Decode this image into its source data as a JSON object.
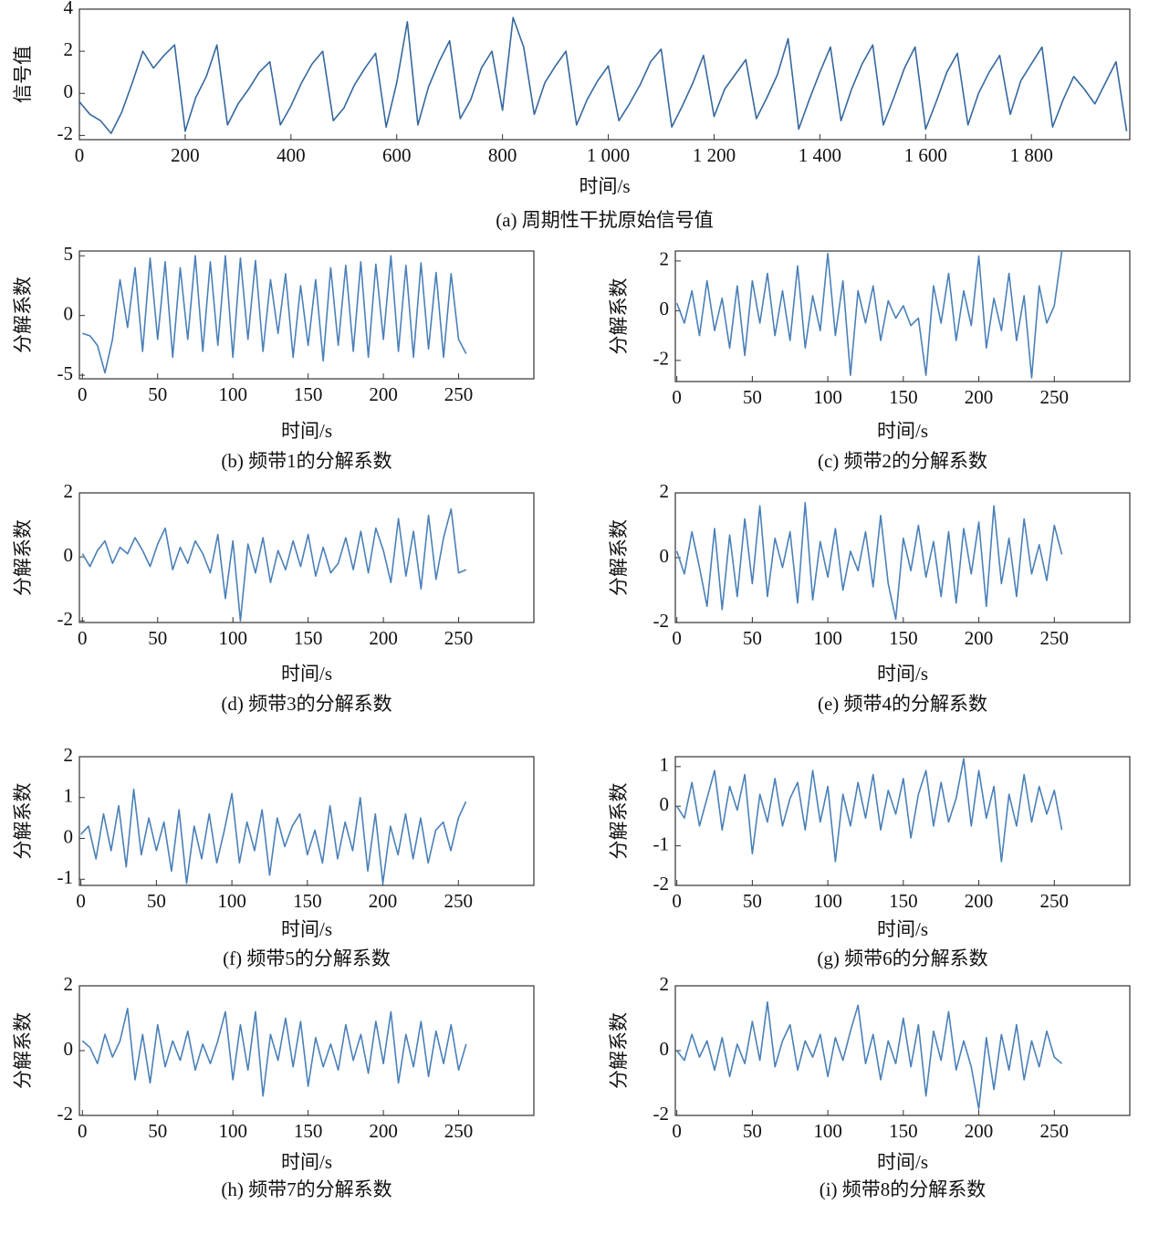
{
  "chart_data": [
    {
      "type": "line",
      "title": "(a) 周期性干扰原始信号值",
      "xlabel": "时间/s",
      "ylabel": "信号值",
      "color": "#35689f",
      "x": [
        0,
        20,
        40,
        60,
        80,
        100,
        120,
        140,
        160,
        180,
        200,
        220,
        240,
        260,
        280,
        300,
        320,
        340,
        360,
        380,
        400,
        420,
        440,
        460,
        480,
        500,
        520,
        540,
        560,
        580,
        600,
        620,
        640,
        660,
        680,
        700,
        720,
        740,
        760,
        780,
        800,
        820,
        840,
        860,
        880,
        900,
        920,
        940,
        960,
        980,
        1000,
        1020,
        1040,
        1060,
        1080,
        1100,
        1120,
        1140,
        1160,
        1180,
        1200,
        1220,
        1240,
        1260,
        1280,
        1300,
        1320,
        1340,
        1360,
        1380,
        1400,
        1420,
        1440,
        1460,
        1480,
        1500,
        1520,
        1540,
        1560,
        1580,
        1600,
        1620,
        1640,
        1660,
        1680,
        1700,
        1720,
        1740,
        1760,
        1780,
        1800,
        1820,
        1840,
        1860,
        1880,
        1900,
        1920,
        1940,
        1960,
        1980
      ],
      "values": [
        -0.4,
        -1.0,
        -1.3,
        -1.9,
        -0.9,
        0.5,
        2.0,
        1.2,
        1.8,
        2.3,
        -1.8,
        -0.2,
        0.8,
        2.3,
        -1.5,
        -0.5,
        0.2,
        1.0,
        1.5,
        -1.5,
        -0.6,
        0.5,
        1.4,
        2.0,
        -1.3,
        -0.7,
        0.4,
        1.2,
        1.9,
        -1.6,
        0.5,
        3.4,
        -1.5,
        0.3,
        1.5,
        2.5,
        -1.2,
        -0.3,
        1.2,
        2.0,
        -0.8,
        3.6,
        2.2,
        -1.0,
        0.5,
        1.3,
        2.0,
        -1.5,
        -0.3,
        0.6,
        1.3,
        -1.3,
        -0.5,
        0.4,
        1.5,
        2.1,
        -1.6,
        -0.6,
        0.5,
        1.8,
        -1.1,
        0.2,
        0.9,
        1.6,
        -1.2,
        -0.2,
        0.9,
        2.6,
        -1.7,
        -0.3,
        1.0,
        2.2,
        -1.3,
        0.2,
        1.4,
        2.3,
        -1.5,
        -0.2,
        1.2,
        2.2,
        -1.7,
        -0.4,
        1.0,
        1.9,
        -1.5,
        0.0,
        1.0,
        1.8,
        -1.0,
        0.6,
        1.4,
        2.2,
        -1.6,
        -0.3,
        0.8,
        0.2,
        -0.5,
        0.5,
        1.5,
        -1.8
      ],
      "xlim": [
        0,
        1986
      ],
      "ylim": [
        -2.2,
        4
      ],
      "xticks": [
        0,
        200,
        400,
        600,
        800,
        {
          "value": 1000,
          "label": "1 000"
        },
        {
          "value": 1200,
          "label": "1 200"
        },
        {
          "value": 1400,
          "label": "1 400"
        },
        {
          "value": 1600,
          "label": "1 600"
        },
        {
          "value": 1800,
          "label": "1 800"
        }
      ],
      "yticks": [
        -2,
        0,
        2,
        4
      ]
    },
    {
      "type": "line",
      "title": "(b) 频带1的分解系数",
      "xlabel": "时间/s",
      "ylabel": "分解系数",
      "color": "#4a80b8",
      "x": [
        0,
        5,
        10,
        15,
        20,
        25,
        30,
        35,
        40,
        45,
        50,
        55,
        60,
        65,
        70,
        75,
        80,
        85,
        90,
        95,
        100,
        105,
        110,
        115,
        120,
        125,
        130,
        135,
        140,
        145,
        150,
        155,
        160,
        165,
        170,
        175,
        180,
        185,
        190,
        195,
        200,
        205,
        210,
        215,
        220,
        225,
        230,
        235,
        240,
        245,
        250,
        255
      ],
      "values": [
        -1.5,
        -1.7,
        -2.5,
        -4.8,
        -2,
        3,
        -1,
        4,
        -3,
        4.8,
        -2,
        4.5,
        -3.5,
        4,
        -2,
        5,
        -3,
        4.5,
        -2.5,
        5,
        -3.5,
        4.8,
        -2,
        4.6,
        -3,
        3,
        -1.5,
        3.5,
        -3.5,
        2.5,
        -2.5,
        3,
        -3.8,
        4,
        -2.5,
        4.2,
        -3,
        4.5,
        -3.5,
        4.3,
        -2,
        5,
        -3,
        4.2,
        -3.5,
        4.4,
        -2.8,
        3.6,
        -3.5,
        3.5,
        -2,
        -3.2
      ],
      "xlim": [
        -2,
        300
      ],
      "ylim": [
        -5.3,
        5.4
      ],
      "xticks": [
        0,
        50,
        100,
        150,
        200,
        250
      ],
      "yticks": [
        -5,
        0,
        5
      ]
    },
    {
      "type": "line",
      "title": "(c) 频带2的分解系数",
      "xlabel": "时间/s",
      "ylabel": "分解系数",
      "color": "#4a80b8",
      "x": [
        0,
        5,
        10,
        15,
        20,
        25,
        30,
        35,
        40,
        45,
        50,
        55,
        60,
        65,
        70,
        75,
        80,
        85,
        90,
        95,
        100,
        105,
        110,
        115,
        120,
        125,
        130,
        135,
        140,
        145,
        150,
        155,
        160,
        165,
        170,
        175,
        180,
        185,
        190,
        195,
        200,
        205,
        210,
        215,
        220,
        225,
        230,
        235,
        240,
        245,
        250,
        255
      ],
      "values": [
        0.3,
        -0.5,
        0.8,
        -1,
        1.2,
        -0.8,
        0.5,
        -1.5,
        1,
        -1.8,
        1.2,
        -0.5,
        1.5,
        -1,
        0.8,
        -1.2,
        1.8,
        -1.5,
        0.6,
        -0.8,
        2.3,
        -1,
        1.2,
        -2.6,
        0.8,
        -0.5,
        1,
        -1.2,
        0.4,
        -0.3,
        0.2,
        -0.6,
        -0.3,
        -2.6,
        1,
        -0.5,
        1.5,
        -1.2,
        0.8,
        -0.6,
        2.2,
        -1.5,
        0.5,
        -0.8,
        1.5,
        -1.2,
        0.6,
        -2.7,
        1,
        -0.5,
        0.2,
        2.4
      ],
      "xlim": [
        -1,
        300
      ],
      "ylim": [
        -2.85,
        2.4
      ],
      "xticks": [
        0,
        50,
        100,
        150,
        200,
        250
      ],
      "yticks": [
        -2,
        0,
        2
      ]
    },
    {
      "type": "line",
      "title": "(d) 频带3的分解系数",
      "xlabel": "时间/s",
      "ylabel": "分解系数",
      "color": "#4a80b8",
      "x": [
        0,
        5,
        10,
        15,
        20,
        25,
        30,
        35,
        40,
        45,
        50,
        55,
        60,
        65,
        70,
        75,
        80,
        85,
        90,
        95,
        100,
        105,
        110,
        115,
        120,
        125,
        130,
        135,
        140,
        145,
        150,
        155,
        160,
        165,
        170,
        175,
        180,
        185,
        190,
        195,
        200,
        205,
        210,
        215,
        220,
        225,
        230,
        235,
        240,
        245,
        250,
        255
      ],
      "values": [
        0.1,
        -0.3,
        0.2,
        0.5,
        -0.2,
        0.3,
        0.1,
        0.6,
        0.2,
        -0.3,
        0.4,
        0.9,
        -0.4,
        0.3,
        -0.2,
        0.5,
        0.1,
        -0.5,
        0.7,
        -1.3,
        0.5,
        -2,
        0.4,
        -0.5,
        0.6,
        -0.8,
        0.2,
        -0.4,
        0.5,
        -0.3,
        0.7,
        -0.6,
        0.3,
        -0.5,
        -0.2,
        0.6,
        -0.4,
        0.8,
        -0.5,
        0.9,
        0.2,
        -0.8,
        1.2,
        -0.6,
        0.8,
        -1,
        1.3,
        -0.7,
        0.6,
        1.5,
        -0.5,
        -0.4
      ],
      "xlim": [
        -2,
        300
      ],
      "ylim": [
        -2.05,
        2
      ],
      "xticks": [
        0,
        50,
        100,
        150,
        200,
        250
      ],
      "yticks": [
        -2,
        0,
        2
      ]
    },
    {
      "type": "line",
      "title": "(e) 频带4的分解系数",
      "xlabel": "时间/s",
      "ylabel": "分解系数",
      "color": "#4a80b8",
      "x": [
        0,
        5,
        10,
        15,
        20,
        25,
        30,
        35,
        40,
        45,
        50,
        55,
        60,
        65,
        70,
        75,
        80,
        85,
        90,
        95,
        100,
        105,
        110,
        115,
        120,
        125,
        130,
        135,
        140,
        145,
        150,
        155,
        160,
        165,
        170,
        175,
        180,
        185,
        190,
        195,
        200,
        205,
        210,
        215,
        220,
        225,
        230,
        235,
        240,
        245,
        250,
        255
      ],
      "values": [
        0.2,
        -0.5,
        0.8,
        -0.3,
        -1.5,
        0.9,
        -1.6,
        0.7,
        -1.2,
        1.2,
        -0.8,
        1.6,
        -1.2,
        0.6,
        -0.3,
        0.8,
        -1.4,
        1.7,
        -1.3,
        0.5,
        -0.6,
        0.9,
        -1,
        0.2,
        -0.4,
        0.8,
        -0.9,
        1.3,
        -0.8,
        -1.9,
        0.6,
        -0.4,
        1,
        -0.6,
        0.5,
        -1.2,
        0.8,
        -1.4,
        0.9,
        -0.5,
        1.1,
        -1.5,
        1.6,
        -0.8,
        0.6,
        -1.2,
        1.2,
        -0.5,
        0.4,
        -0.7,
        1,
        0.1
      ],
      "xlim": [
        -1,
        300
      ],
      "ylim": [
        -2,
        2
      ],
      "xticks": [
        0,
        50,
        100,
        150,
        200,
        250
      ],
      "yticks": [
        -2,
        0,
        2
      ]
    },
    {
      "type": "line",
      "title": "(f) 频带5的分解系数",
      "xlabel": "时间/s",
      "ylabel": "分解系数",
      "color": "#4a80b8",
      "x": [
        0,
        5,
        10,
        15,
        20,
        25,
        30,
        35,
        40,
        45,
        50,
        55,
        60,
        65,
        70,
        75,
        80,
        85,
        90,
        95,
        100,
        105,
        110,
        115,
        120,
        125,
        130,
        135,
        140,
        145,
        150,
        155,
        160,
        165,
        170,
        175,
        180,
        185,
        190,
        195,
        200,
        205,
        210,
        215,
        220,
        225,
        230,
        235,
        240,
        245,
        250,
        255
      ],
      "values": [
        0.1,
        0.3,
        -0.5,
        0.6,
        -0.3,
        0.8,
        -0.7,
        1.2,
        -0.4,
        0.5,
        -0.3,
        0.4,
        -0.8,
        0.7,
        -1.1,
        0.3,
        -0.5,
        0.6,
        -0.6,
        0.2,
        1.1,
        -0.6,
        0.4,
        -0.3,
        0.7,
        -0.9,
        0.5,
        -0.2,
        0.3,
        0.6,
        -0.4,
        0.2,
        -0.6,
        0.8,
        -0.5,
        0.4,
        -0.3,
        1,
        -0.8,
        0.6,
        -1.1,
        0.3,
        -0.4,
        0.6,
        -0.5,
        0.5,
        -0.6,
        0.2,
        0.4,
        -0.3,
        0.5,
        0.9
      ],
      "xlim": [
        -1,
        300
      ],
      "ylim": [
        -1.15,
        2
      ],
      "xticks": [
        0,
        50,
        100,
        150,
        200,
        250
      ],
      "yticks": [
        -1,
        0,
        1,
        2
      ]
    },
    {
      "type": "line",
      "title": "(g) 频带6的分解系数",
      "xlabel": "时间/s",
      "ylabel": "分解系数",
      "color": "#4a80b8",
      "x": [
        0,
        5,
        10,
        15,
        20,
        25,
        30,
        35,
        40,
        45,
        50,
        55,
        60,
        65,
        70,
        75,
        80,
        85,
        90,
        95,
        100,
        105,
        110,
        115,
        120,
        125,
        130,
        135,
        140,
        145,
        150,
        155,
        160,
        165,
        170,
        175,
        180,
        185,
        190,
        195,
        200,
        205,
        210,
        215,
        220,
        225,
        230,
        235,
        240,
        245,
        250,
        255
      ],
      "values": [
        0,
        -0.3,
        0.6,
        -0.5,
        0.2,
        0.9,
        -0.6,
        0.5,
        -0.1,
        0.8,
        -1.2,
        0.3,
        -0.4,
        0.7,
        -0.5,
        0.2,
        0.6,
        -0.6,
        0.9,
        -0.4,
        0.5,
        -1.4,
        0.3,
        -0.5,
        0.6,
        -0.3,
        0.8,
        -0.6,
        0.4,
        -0.2,
        0.7,
        -0.8,
        0.3,
        0.9,
        -0.5,
        0.6,
        -0.4,
        0.2,
        1.2,
        -0.5,
        0.9,
        -0.3,
        0.5,
        -1.4,
        0.3,
        -0.5,
        0.8,
        -0.4,
        0.5,
        -0.2,
        0.4,
        -0.6
      ],
      "xlim": [
        -1,
        300
      ],
      "ylim": [
        -2,
        1.25
      ],
      "xticks": [
        0,
        50,
        100,
        150,
        200,
        250
      ],
      "yticks": [
        -2,
        -1,
        0,
        1
      ]
    },
    {
      "type": "line",
      "title": "(h) 频带7的分解系数",
      "xlabel": "时间/s",
      "ylabel": "分解系数",
      "color": "#4a80b8",
      "x": [
        0,
        5,
        10,
        15,
        20,
        25,
        30,
        35,
        40,
        45,
        50,
        55,
        60,
        65,
        70,
        75,
        80,
        85,
        90,
        95,
        100,
        105,
        110,
        115,
        120,
        125,
        130,
        135,
        140,
        145,
        150,
        155,
        160,
        165,
        170,
        175,
        180,
        185,
        190,
        195,
        200,
        205,
        210,
        215,
        220,
        225,
        230,
        235,
        240,
        245,
        250,
        255
      ],
      "values": [
        0.3,
        0.1,
        -0.4,
        0.5,
        -0.2,
        0.3,
        1.3,
        -0.9,
        0.5,
        -1,
        0.8,
        -0.5,
        0.3,
        -0.3,
        0.6,
        -0.6,
        0.2,
        -0.4,
        0.3,
        1.2,
        -0.9,
        0.8,
        -0.6,
        1.2,
        -1.4,
        0.5,
        -0.3,
        1,
        -0.5,
        0.9,
        -1.1,
        0.4,
        -0.5,
        0.2,
        -0.6,
        0.8,
        -0.3,
        0.5,
        -0.7,
        0.9,
        -0.4,
        1.2,
        -1,
        0.5,
        -0.5,
        0.9,
        -0.8,
        0.6,
        -0.4,
        0.8,
        -0.6,
        0.2
      ],
      "xlim": [
        -2,
        300
      ],
      "ylim": [
        -2,
        2
      ],
      "xticks": [
        0,
        50,
        100,
        150,
        200,
        250
      ],
      "yticks": [
        -2,
        0,
        2
      ]
    },
    {
      "type": "line",
      "title": "(i) 频带8的分解系数",
      "xlabel": "时间/s",
      "ylabel": "分解系数",
      "color": "#4a80b8",
      "x": [
        0,
        5,
        10,
        15,
        20,
        25,
        30,
        35,
        40,
        45,
        50,
        55,
        60,
        65,
        70,
        75,
        80,
        85,
        90,
        95,
        100,
        105,
        110,
        115,
        120,
        125,
        130,
        135,
        140,
        145,
        150,
        155,
        160,
        165,
        170,
        175,
        180,
        185,
        190,
        195,
        200,
        205,
        210,
        215,
        220,
        225,
        230,
        235,
        240,
        245,
        250,
        255
      ],
      "values": [
        0,
        -0.3,
        0.5,
        -0.2,
        0.3,
        -0.6,
        0.4,
        -0.8,
        0.2,
        -0.4,
        0.9,
        -0.3,
        1.5,
        -0.5,
        0.3,
        0.8,
        -0.6,
        0.3,
        -0.2,
        0.5,
        -0.8,
        0.4,
        -0.3,
        0.6,
        1.4,
        -0.4,
        0.5,
        -0.9,
        0.3,
        -0.4,
        1,
        -0.5,
        0.8,
        -1.4,
        0.6,
        -0.3,
        1.2,
        -0.6,
        0.3,
        -0.5,
        -1.8,
        0.4,
        -1.2,
        0.5,
        -0.6,
        0.8,
        -0.9,
        0.3,
        -0.5,
        0.6,
        -0.2,
        -0.4
      ],
      "xlim": [
        -1,
        300
      ],
      "ylim": [
        -2,
        2
      ],
      "xticks": [
        0,
        50,
        100,
        150,
        200,
        250
      ],
      "yticks": [
        -2,
        0,
        2
      ]
    }
  ]
}
